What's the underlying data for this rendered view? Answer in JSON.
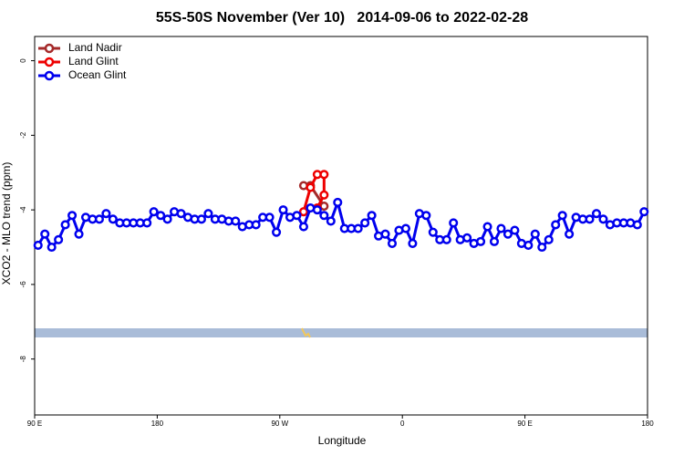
{
  "chart_data": {
    "type": "line",
    "title": "55S-50S November (Ver 10)   2014-09-06 to 2022-02-28",
    "x_label": "Longitude",
    "y_label": "XCO2 - MLO trend (ppm)",
    "xlim": [
      90,
      540
    ],
    "ylim": [
      -9.5,
      0.65
    ],
    "xticks": [
      {
        "value": 90,
        "label": "90 E"
      },
      {
        "value": 180,
        "label": "180"
      },
      {
        "value": 270,
        "label": "90 W"
      },
      {
        "value": 360,
        "label": "0"
      },
      {
        "value": 450,
        "label": "90 E"
      },
      {
        "value": 540,
        "label": "180"
      }
    ],
    "yticks": [
      0,
      -2,
      -4,
      -6,
      -8
    ],
    "legend": "top-left",
    "series": [
      {
        "name": "Land Nadir",
        "color": "#a52a2a",
        "x": [
          287.5,
          292.5,
          302.5
        ],
        "values": [
          -3.35,
          -3.35,
          -3.9
        ]
      },
      {
        "name": "Land Glint",
        "color": "#ee0000",
        "x": [
          287.5,
          292.5,
          297.5,
          302.5,
          302.5,
          297.5
        ],
        "values": [
          -4.05,
          -3.4,
          -3.05,
          -3.05,
          -3.6,
          -3.95
        ]
      },
      {
        "name": "Ocean Glint",
        "color": "#0000ee",
        "x": [
          92.5,
          97.5,
          102.5,
          107.5,
          112.5,
          117.5,
          122.5,
          127.5,
          132.5,
          137.5,
          142.5,
          147.5,
          152.5,
          157.5,
          162.5,
          167.5,
          172.5,
          177.5,
          182.5,
          187.5,
          192.5,
          197.5,
          202.5,
          207.5,
          212.5,
          217.5,
          222.5,
          227.5,
          232.5,
          237.5,
          242.5,
          247.5,
          252.5,
          257.5,
          262.5,
          267.5,
          272.5,
          277.5,
          282.5,
          287.5,
          292.5,
          297.5,
          302.5,
          307.5,
          312.5,
          317.5,
          322.5,
          327.5,
          332.5,
          337.5,
          342.5,
          347.5,
          352.5,
          357.5,
          362.5,
          367.5,
          372.5,
          377.5,
          382.5,
          387.5,
          392.5,
          397.5,
          402.5,
          407.5,
          412.5,
          417.5,
          422.5,
          427.5,
          432.5,
          437.5,
          442.5,
          447.5,
          452.5,
          457.5,
          462.5,
          467.5,
          472.5,
          477.5,
          482.5,
          487.5,
          492.5,
          497.5,
          502.5,
          507.5,
          512.5,
          517.5,
          522.5,
          527.5,
          532.5,
          537.5
        ],
        "values": [
          -4.95,
          -4.65,
          -5.0,
          -4.8,
          -4.4,
          -4.15,
          -4.65,
          -4.2,
          -4.25,
          -4.25,
          -4.1,
          -4.25,
          -4.35,
          -4.35,
          -4.35,
          -4.35,
          -4.35,
          -4.05,
          -4.15,
          -4.25,
          -4.05,
          -4.1,
          -4.2,
          -4.25,
          -4.25,
          -4.1,
          -4.25,
          -4.25,
          -4.3,
          -4.3,
          -4.45,
          -4.4,
          -4.4,
          -4.2,
          -4.2,
          -4.6,
          -4.0,
          -4.2,
          -4.15,
          -4.45,
          -3.95,
          -4.0,
          -4.15,
          -4.3,
          -3.8,
          -4.5,
          -4.5,
          -4.5,
          -4.35,
          -4.15,
          -4.7,
          -4.65,
          -4.9,
          -4.55,
          -4.5,
          -4.9,
          -4.1,
          -4.15,
          -4.6,
          -4.8,
          -4.8,
          -4.35,
          -4.8,
          -4.75,
          -4.9,
          -4.85,
          -4.45,
          -4.85,
          -4.5,
          -4.65,
          -4.55,
          -4.9,
          -4.95,
          -4.65,
          -5.0,
          -4.8,
          -4.4,
          -4.15,
          -4.65,
          -4.2,
          -4.25,
          -4.25,
          -4.1,
          -4.25,
          -4.4,
          -4.35,
          -4.35,
          -4.35,
          -4.4,
          -4.05
        ]
      }
    ]
  }
}
